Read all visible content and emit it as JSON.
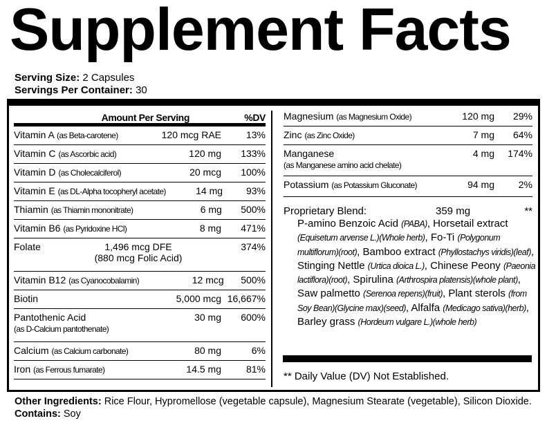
{
  "title": "Supplement Facts",
  "serving_size_label": "Serving Size:",
  "serving_size": "2 Capsules",
  "servings_label": "Servings Per Container:",
  "servings": "30",
  "header": {
    "amount": "Amount Per Serving",
    "dv": "%DV"
  },
  "left": [
    {
      "name": "Vitamin A",
      "source": "(as Beta-carotene)",
      "amount": "120 mcg RAE",
      "dv": "13%"
    },
    {
      "name": "Vitamin C",
      "source": "(as Ascorbic acid)",
      "amount": "120 mg",
      "dv": "133%"
    },
    {
      "name": "Vitamin D",
      "source": "(as Cholecalciferol)",
      "amount": "20 mcg",
      "dv": "100%"
    },
    {
      "name": "Vitamin E",
      "source": "(as DL-Alpha tocopheryl acetate)",
      "amount": "14 mg",
      "dv": "93%"
    },
    {
      "name": "Thiamin",
      "source": "(as Thiamin mononitrate)",
      "amount": "6 mg",
      "dv": "500%"
    },
    {
      "name": "Vitamin B6",
      "source": "(as Pyridoxine HCl)",
      "amount": "8 mg",
      "dv": "471%"
    },
    {
      "name": "Folate",
      "source": "",
      "amount": "1,496 mcg DFE",
      "amount2": "(880 mcg Folic Acid)",
      "dv": "374%"
    },
    {
      "name": "Vitamin B12",
      "source": "(as Cyanocobalamin)",
      "amount": "12 mcg",
      "dv": "500%"
    },
    {
      "name": "Biotin",
      "source": "",
      "amount": "5,000 mcg",
      "dv": "16,667%"
    },
    {
      "name": "Pantothenic Acid",
      "source": "(as  D-Calcium pantothenate)",
      "amount": "30 mg",
      "dv": "600%"
    },
    {
      "name": "Calcium",
      "source": "(as Calcium carbonate)",
      "amount": "80 mg",
      "dv": "6%"
    },
    {
      "name": "Iron",
      "source": "(as Ferrous fumarate)",
      "amount": "14.5 mg",
      "dv": "81%"
    }
  ],
  "right": [
    {
      "name": "Magnesium",
      "source": "(as Magnesium Oxide)",
      "amount": "120 mg",
      "dv": "29%"
    },
    {
      "name": "Zinc",
      "source": "(as Zinc Oxide)",
      "amount": "7 mg",
      "dv": "64%"
    },
    {
      "name": "Manganese",
      "source": "(as Manganese amino acid chelate)",
      "amount": "4 mg",
      "dv": "174%"
    },
    {
      "name": "Potassium",
      "source": "(as Potassium Gluconate)",
      "amount": "94 mg",
      "dv": "2%"
    }
  ],
  "blend": {
    "name": "Proprietary Blend:",
    "amount": "359 mg",
    "dv": "**",
    "parts": [
      [
        "P-amino Benzoic Acid ",
        "n"
      ],
      [
        "(PABA)",
        "i"
      ],
      [
        ", Horsetail extract ",
        "n"
      ],
      [
        "(Equisetum arvense L.)(Whole herb)",
        "i"
      ],
      [
        ", Fo-Ti ",
        "n"
      ],
      [
        "(Polygonum multiflorum)(root)",
        "i"
      ],
      [
        ", Bamboo extract ",
        "n"
      ],
      [
        "(Phyllostachys viridis)(leaf)",
        "i"
      ],
      [
        ", Stinging Nettle  ",
        "n"
      ],
      [
        "(Urtica dioica L.)",
        "i"
      ],
      [
        ", Chinese Peony ",
        "n"
      ],
      [
        "(Paeonia lactiflora)(root)",
        "i"
      ],
      [
        ", Spirulina ",
        "n"
      ],
      [
        "(Arthrospira platensis)(whole plant)",
        "i"
      ],
      [
        ", Saw palmetto ",
        "n"
      ],
      [
        "(Serenoa repens)(fruit)",
        "i"
      ],
      [
        ", Plant sterols ",
        "n"
      ],
      [
        "(from Soy Bean)(Glycine max)(seed)",
        "i"
      ],
      [
        ", Alfalfa ",
        "n"
      ],
      [
        "(Medicago sativa)(herb)",
        "i"
      ],
      [
        ",  Barley grass ",
        "n"
      ],
      [
        "(Hordeum vulgare L.)(whole herb)",
        "i"
      ]
    ]
  },
  "dv_note": "** Daily Value (DV) Not Established.",
  "other_label": "Other Ingredients:",
  "other": "Rice Flour, Hypromellose (vegetable capsule), Magnesium Stearate (vegetable), Silicon Dioxide.",
  "contains_label": "Contains:",
  "contains": "Soy"
}
